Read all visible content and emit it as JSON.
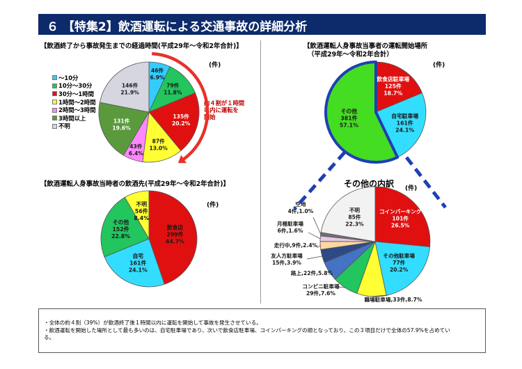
{
  "header": {
    "title": "６ 【特集2】飲酒運転による交通事故の詳細分析"
  },
  "unit_label": "(件)",
  "note": {
    "line1": "約４割が１時間",
    "line2": "以内に運転を",
    "line3": "開始"
  },
  "colors": {
    "banner": "#0d2a6b",
    "arrow": "#e8322a",
    "highlight": "#1e3fb4"
  },
  "summary": {
    "line1": "・全体の約４割（39%）が飲酒終了後１時間以内に運転を開始して事故を発生させている。",
    "line2": "・飲酒運転を開始した場所として最も多いのは、自宅駐車場であり、次いで飲食店駐車場、コインパーキングの順となっており、この３項目だけで全体の57.9%を占めてい",
    "line3": "る。"
  },
  "chart_data": [
    {
      "id": "elapsed",
      "type": "pie",
      "title": "【飲酒終了から事故発生までの経過時間(平成29年～令和2年合計)】",
      "slices": [
        {
          "legend": "～10分",
          "count": "46件",
          "pct": "6.9%",
          "value": 46,
          "color": "#33ccff"
        },
        {
          "legend": "10分～30分",
          "count": "79件",
          "pct": "11.8%",
          "value": 79,
          "color": "#22c55e"
        },
        {
          "legend": "30分～1時間",
          "count": "135件",
          "pct": "20.2%",
          "value": 135,
          "color": "#e01010"
        },
        {
          "legend": "1時間～2時間",
          "count": "87件",
          "pct": "13.0%",
          "value": 87,
          "color": "#ffff33"
        },
        {
          "legend": "2時間～3時間",
          "count": "43件",
          "pct": "6.4%",
          "value": 43,
          "color": "#ff88ff"
        },
        {
          "legend": "3時間以上",
          "count": "131件",
          "pct": "19.6%",
          "value": 131,
          "color": "#5a9a3c"
        },
        {
          "legend": "不明",
          "count": "146件",
          "pct": "21.9%",
          "value": 146,
          "color": "#d6d6e0"
        }
      ]
    },
    {
      "id": "drinking_place",
      "type": "pie",
      "title": "【飲酒運転人身事故当時者の飲酒先(平成29年～令和2年合計)】",
      "slices": [
        {
          "name": "飲食店",
          "count": "299件",
          "pct": "44.7%",
          "value": 299,
          "color": "#e01010"
        },
        {
          "name": "自宅",
          "count": "161件",
          "pct": "24.1%",
          "value": 161,
          "color": "#33ddff"
        },
        {
          "name": "その他",
          "count": "152件",
          "pct": "22.8%",
          "value": 152,
          "color": "#22c55e"
        },
        {
          "name": "不明",
          "count": "56件",
          "pct": "8.4%",
          "value": 56,
          "color": "#ffff33"
        }
      ]
    },
    {
      "id": "start_place",
      "type": "pie",
      "title_line1": "【飲酒運転人身事故当事者の運転開始場所",
      "title_line2": "（平成29年～令和2年合計）",
      "slices": [
        {
          "name": "飲食店駐車場",
          "count": "125件",
          "pct": "18.7%",
          "value": 125,
          "color": "#e01010"
        },
        {
          "name": "自宅駐車場",
          "count": "161件",
          "pct": "24.1%",
          "value": 161,
          "color": "#33ddff"
        },
        {
          "name": "その他",
          "count": "381件",
          "pct": "57.1%",
          "value": 381,
          "color": "#44dd22"
        }
      ]
    },
    {
      "id": "other_breakdown",
      "type": "pie",
      "title": "その他の内訳",
      "slices": [
        {
          "name": "コインパーキング",
          "count": "101件",
          "pct": "26.5%",
          "value": 101,
          "color": "#e01010"
        },
        {
          "name": "その他駐車場",
          "count": "77件",
          "pct": "20.2%",
          "value": 77,
          "color": "#33ddff"
        },
        {
          "label": "職場駐車場,33件,8.7%",
          "value": 33,
          "color": "#ffff33"
        },
        {
          "label1": "コンビニ駐車場",
          "label2": "29件,7.6%",
          "value": 29,
          "color": "#22c55e"
        },
        {
          "label": "路上,22件,5.8%",
          "value": 22,
          "color": "#4472c4"
        },
        {
          "label1": "友人方駐車場",
          "label2": "15件,3.9%",
          "value": 15,
          "color": "#2e4a86"
        },
        {
          "label": "走行中,9件,2.4%",
          "value": 9,
          "color": "#ffd9a0"
        },
        {
          "label1": "月極駐車場",
          "label2": "6件,1.6%",
          "value": 6,
          "color": "#e8c8e8"
        },
        {
          "label1": "空地",
          "label2": "4件,1.0%",
          "value": 4,
          "color": "#707070"
        },
        {
          "name": "不明",
          "count": "85件",
          "pct": "22.3%",
          "value": 85,
          "color": "#f2f2f2"
        }
      ]
    }
  ]
}
